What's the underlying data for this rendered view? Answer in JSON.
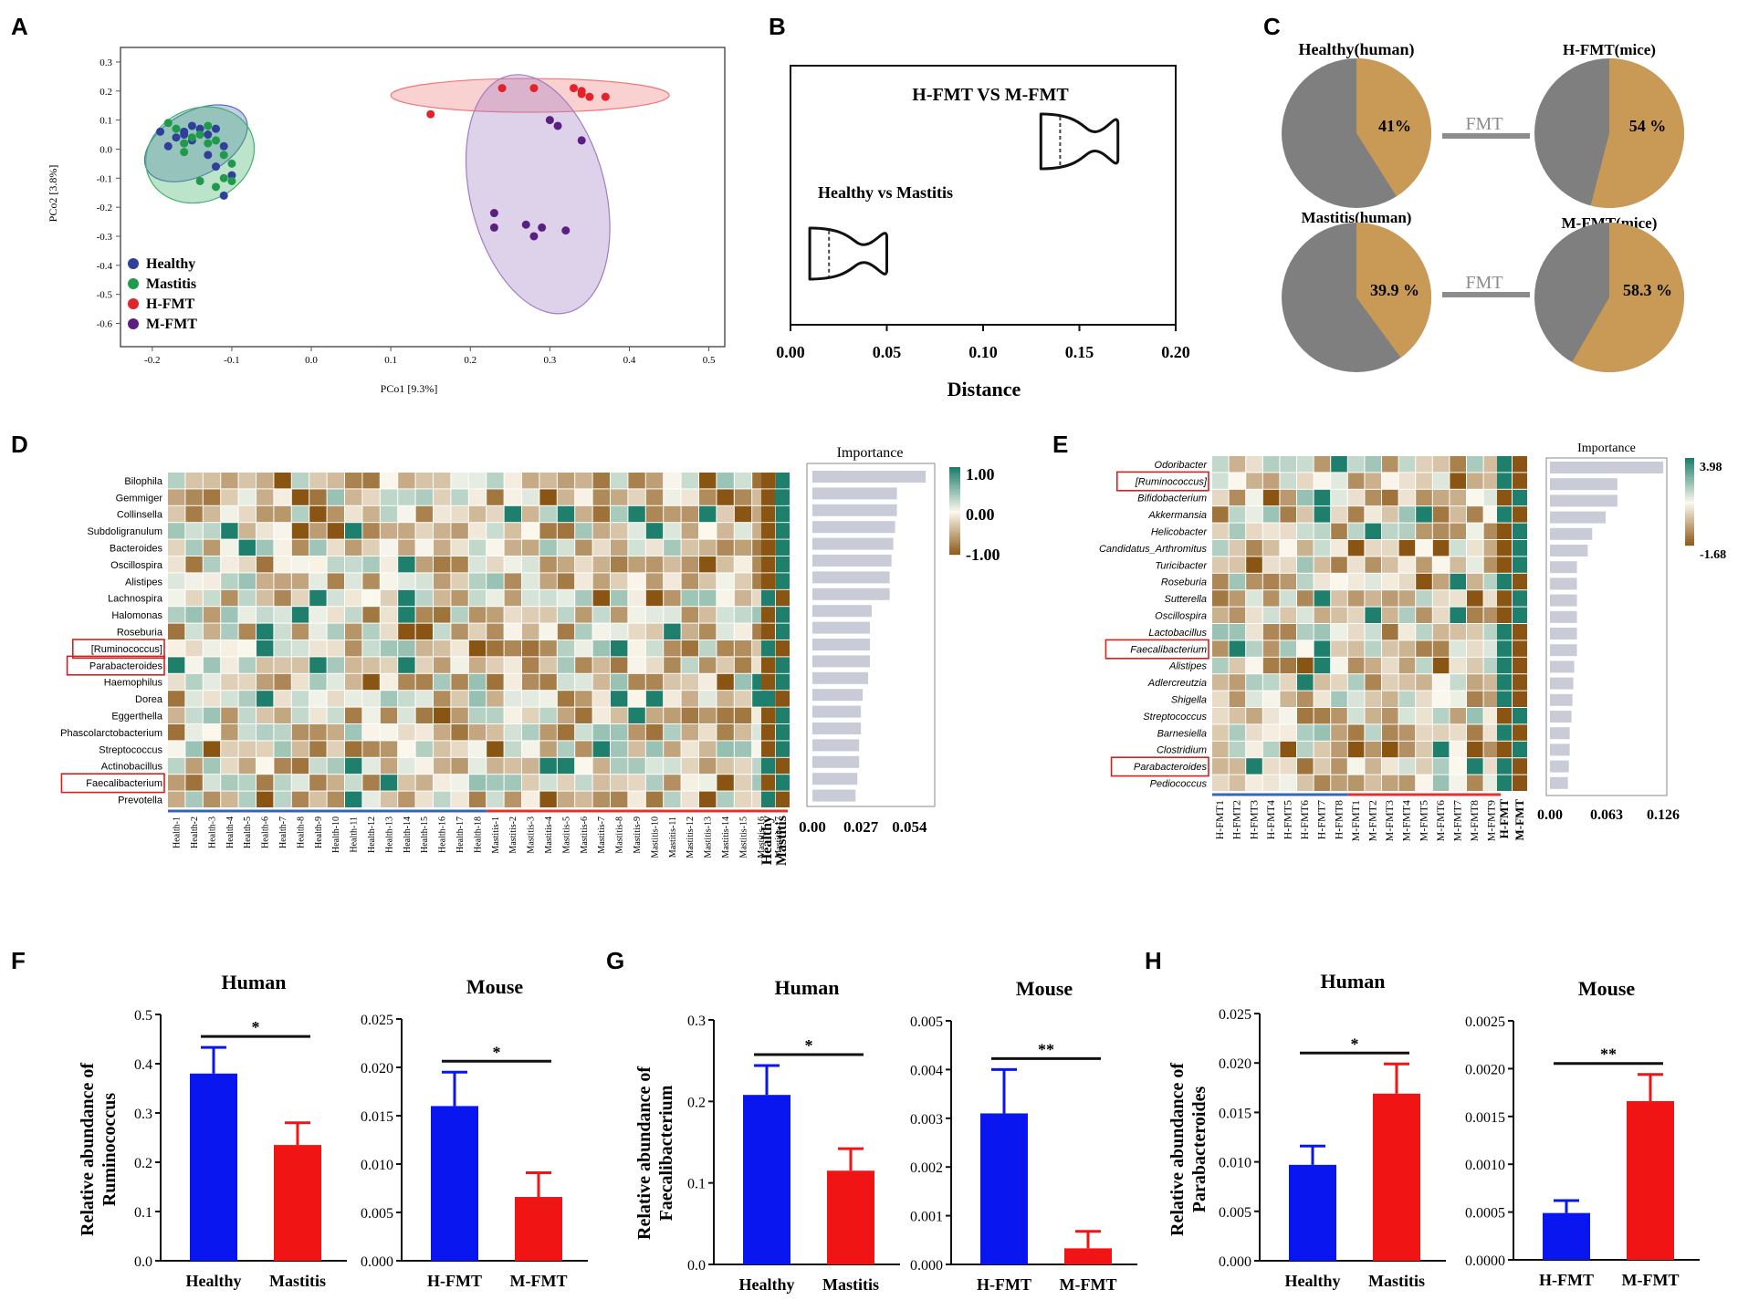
{
  "colors": {
    "healthy": "#2f3f9a",
    "mastitis": "#1f9a4a",
    "hfmt": "#e3222a",
    "mfmt": "#5b1f82",
    "blue": "#0a16f0",
    "red": "#f01414",
    "teal": "#1e7f6c",
    "brown": "#8a5512",
    "tan": "#c99a55",
    "gray": "#7f7f7f"
  },
  "panels": {
    "A": {
      "letter": "A",
      "xlabel": "PCo1 [9.3%]",
      "ylabel": "PCo2 [3.8%]",
      "xticks": [
        "-0.2",
        "-0.1",
        "0.0",
        "0.1",
        "0.2",
        "0.3",
        "0.4",
        "0.5"
      ],
      "yticks": [
        "0.3",
        "0.2",
        "0.1",
        "0.0",
        "-0.1",
        "-0.2",
        "-0.3",
        "-0.4",
        "-0.5",
        "-0.6"
      ],
      "legend": [
        "Healthy",
        "Mastitis",
        "H-FMT",
        "M-FMT"
      ]
    },
    "B": {
      "letter": "B",
      "xlabel": "Distance",
      "xticks": [
        "0.00",
        "0.05",
        "0.10",
        "0.15",
        "0.20"
      ],
      "labels": [
        "H-FMT VS M-FMT",
        "Healthy vs Mastitis"
      ]
    },
    "C": {
      "letter": "C",
      "titles": [
        "Healthy(human)",
        "H-FMT(mice)",
        "Mastitis(human)",
        "M-FMT(mice)"
      ],
      "percents": [
        "41%",
        "54 %",
        "39.9 %",
        "58.3 %"
      ],
      "arrow": "FMT"
    },
    "D": {
      "letter": "D",
      "taxa": [
        "Bilophila",
        "Gemmiger",
        "Collinsella",
        "Subdoligranulum",
        "Bacteroides",
        "Oscillospira",
        "Alistipes",
        "Lachnospira",
        "Halomonas",
        "Roseburia",
        "[Ruminococcus]",
        "Parabacteroides",
        "Haemophilus",
        "Dorea",
        "Eggerthella",
        "Phascolarctobacterium",
        "Streptococcus",
        "Actinobacillus",
        "Faecalibacterium",
        "Prevotella"
      ],
      "samples": [
        "Health-1",
        "Health-2",
        "Health-3",
        "Health-4",
        "Health-5",
        "Health-6",
        "Health-7",
        "Health-8",
        "Health-9",
        "Health-10",
        "Health-11",
        "Health-12",
        "Health-13",
        "Health-14",
        "Health-15",
        "Health-16",
        "Health-17",
        "Health-18",
        "Mastitis-1",
        "Mastitis-2",
        "Mastitis-3",
        "Mastitis-4",
        "Mastitis-5",
        "Mastitis-6",
        "Mastitis-7",
        "Mastitis-8",
        "Mastitis-9",
        "Mastitis-10",
        "Mastitis-11",
        "Mastitis-12",
        "Mastitis-13",
        "Mastitis-14",
        "Mastitis-15",
        "Mastitis-16",
        "Mastitis-17"
      ],
      "groups": [
        "Healthy",
        "Mastitis"
      ],
      "legend": [
        "1.00",
        "0.00",
        "-1.00"
      ],
      "importance_title": "Importance",
      "importance_ticks": [
        "0.00",
        "0.027",
        "0.054"
      ]
    },
    "E": {
      "letter": "E",
      "taxa": [
        "Odoribacter",
        "[Ruminococcus]",
        "Bifidobacterium",
        "Akkermansia",
        "Helicobacter",
        "Candidatus_Arthromitus",
        "Turicibacter",
        "Roseburia",
        "Sutterella",
        "Oscillospira",
        "Lactobacillus",
        "Faecalibacterium",
        "Alistipes",
        "Adlercreutzia",
        "Shigella",
        "Streptococcus",
        "Barnesiella",
        "Clostridium",
        "Parabacteroides",
        "Pediococcus"
      ],
      "samples": [
        "H-FMT1",
        "H-FMT2",
        "H-FMT3",
        "H-FMT4",
        "H-FMT5",
        "H-FMT6",
        "H-FMT7",
        "H-FMT8",
        "M-FMT1",
        "M-FMT2",
        "M-FMT3",
        "M-FMT4",
        "M-FMT5",
        "M-FMT6",
        "M-FMT7",
        "M-FMT8",
        "M-FMT9"
      ],
      "groups": [
        "H-FMT",
        "M-FMT"
      ],
      "legend": [
        "3.98",
        "-1.68"
      ],
      "importance_title": "Importance",
      "importance_ticks": [
        "0.00",
        "0.063",
        "0.126"
      ]
    },
    "F": {
      "letter": "F",
      "ylabel1": "Relative abundance of",
      "ylabel2": "Ruminococcus"
    },
    "G": {
      "letter": "G",
      "ylabel1": "Relative abundance of",
      "ylabel2": "Faecalibacterium"
    },
    "H": {
      "letter": "H",
      "ylabel1": "Relative abundance of",
      "ylabel2": "Parabacteroides"
    }
  },
  "chart_data": [
    {
      "id": "A",
      "type": "scatter",
      "title": "",
      "xlabel": "PCo1 [9.3%]",
      "ylabel": "PCo2 [3.8%]",
      "xlim": [
        -0.24,
        0.52
      ],
      "ylim": [
        -0.68,
        0.35
      ],
      "series": [
        {
          "name": "Healthy",
          "points": [
            [
              -0.19,
              0.06
            ],
            [
              -0.18,
              0.01
            ],
            [
              -0.17,
              0.04
            ],
            [
              -0.16,
              0.05
            ],
            [
              -0.15,
              0.08
            ],
            [
              -0.14,
              0.07
            ],
            [
              -0.13,
              0.05
            ],
            [
              -0.12,
              0.07
            ],
            [
              -0.11,
              0.01
            ],
            [
              -0.13,
              -0.02
            ],
            [
              -0.15,
              0.03
            ],
            [
              -0.12,
              -0.06
            ],
            [
              -0.1,
              -0.09
            ],
            [
              -0.11,
              -0.16
            ],
            [
              -0.16,
              0.06
            ]
          ]
        },
        {
          "name": "Mastitis",
          "points": [
            [
              -0.17,
              0.07
            ],
            [
              -0.16,
              0.02
            ],
            [
              -0.15,
              0.04
            ],
            [
              -0.14,
              0.05
            ],
            [
              -0.13,
              0.02
            ],
            [
              -0.12,
              0.03
            ],
            [
              -0.11,
              -0.02
            ],
            [
              -0.1,
              -0.05
            ],
            [
              -0.11,
              -0.1
            ],
            [
              -0.14,
              -0.11
            ],
            [
              -0.12,
              -0.13
            ],
            [
              -0.1,
              -0.11
            ],
            [
              -0.16,
              -0.01
            ],
            [
              -0.18,
              0.09
            ],
            [
              -0.13,
              0.08
            ]
          ]
        },
        {
          "name": "H-FMT",
          "points": [
            [
              0.15,
              0.12
            ],
            [
              0.24,
              0.21
            ],
            [
              0.28,
              0.21
            ],
            [
              0.33,
              0.21
            ],
            [
              0.34,
              0.2
            ],
            [
              0.35,
              0.18
            ],
            [
              0.34,
              0.19
            ],
            [
              0.37,
              0.18
            ]
          ]
        },
        {
          "name": "M-FMT",
          "points": [
            [
              0.3,
              0.1
            ],
            [
              0.31,
              0.08
            ],
            [
              0.34,
              0.03
            ],
            [
              0.23,
              -0.22
            ],
            [
              0.23,
              -0.27
            ],
            [
              0.27,
              -0.26
            ],
            [
              0.28,
              -0.3
            ],
            [
              0.29,
              -0.27
            ],
            [
              0.32,
              -0.28
            ]
          ]
        }
      ]
    },
    {
      "id": "B",
      "type": "violin",
      "xlabel": "Distance",
      "xlim": [
        0,
        0.2
      ],
      "series": [
        {
          "name": "H-FMT VS M-FMT",
          "median": 0.14,
          "range": [
            0.13,
            0.17
          ]
        },
        {
          "name": "Healthy vs Mastitis",
          "median": 0.02,
          "range": [
            0.01,
            0.05
          ]
        }
      ]
    },
    {
      "id": "C",
      "type": "pie",
      "series": [
        {
          "name": "Healthy(human)",
          "value": 41
        },
        {
          "name": "H-FMT(mice)",
          "value": 54
        },
        {
          "name": "Mastitis(human)",
          "value": 39.9
        },
        {
          "name": "M-FMT(mice)",
          "value": 58.3
        }
      ]
    },
    {
      "id": "D",
      "type": "bar",
      "title": "Importance",
      "categories": [
        "Bilophila",
        "Gemmiger",
        "Collinsella",
        "Subdoligranulum",
        "Bacteroides",
        "Oscillospira",
        "Alistipes",
        "Lachnospira",
        "Halomonas",
        "Roseburia",
        "[Ruminococcus]",
        "Parabacteroides",
        "Haemophilus",
        "Dorea",
        "Eggerthella",
        "Phascolarctobacterium",
        "Streptococcus",
        "Actinobacillus",
        "Faecalibacterium",
        "Prevotella"
      ],
      "values": [
        0.063,
        0.047,
        0.047,
        0.046,
        0.045,
        0.044,
        0.043,
        0.043,
        0.033,
        0.032,
        0.032,
        0.032,
        0.031,
        0.028,
        0.027,
        0.027,
        0.026,
        0.026,
        0.025,
        0.024
      ],
      "xlim": [
        0,
        0.065
      ]
    },
    {
      "id": "E",
      "type": "bar",
      "title": "Importance",
      "categories": [
        "Odoribacter",
        "[Ruminococcus]",
        "Bifidobacterium",
        "Akkermansia",
        "Helicobacter",
        "Candidatus_Arthromitus",
        "Turicibacter",
        "Roseburia",
        "Sutterella",
        "Oscillospira",
        "Lactobacillus",
        "Faecalibacterium",
        "Alistipes",
        "Adlercreutzia",
        "Shigella",
        "Streptococcus",
        "Barnesiella",
        "Clostridium",
        "Parabacteroides",
        "Pediococcus"
      ],
      "values": [
        0.126,
        0.075,
        0.075,
        0.062,
        0.047,
        0.042,
        0.03,
        0.03,
        0.03,
        0.03,
        0.03,
        0.03,
        0.027,
        0.026,
        0.025,
        0.024,
        0.022,
        0.022,
        0.021,
        0.02
      ],
      "xlim": [
        0,
        0.13
      ]
    },
    {
      "id": "F1",
      "type": "bar",
      "title": "Human",
      "categories": [
        "Healthy",
        "Mastitis"
      ],
      "values": [
        0.38,
        0.235
      ],
      "errors": [
        0.053,
        0.045
      ],
      "yticks": [
        "0.0",
        "0.1",
        "0.2",
        "0.3",
        "0.4",
        "0.5"
      ],
      "ylim": [
        0,
        0.5
      ],
      "sig": "*"
    },
    {
      "id": "F2",
      "type": "bar",
      "title": "Mouse",
      "categories": [
        "H-FMT",
        "M-FMT"
      ],
      "values": [
        0.016,
        0.0066
      ],
      "errors": [
        0.0035,
        0.0025
      ],
      "yticks": [
        "0.000",
        "0.005",
        "0.010",
        "0.015",
        "0.020",
        "0.025"
      ],
      "ylim": [
        0,
        0.025
      ],
      "sig": "*"
    },
    {
      "id": "G1",
      "type": "bar",
      "title": "Human",
      "categories": [
        "Healthy",
        "Mastitis"
      ],
      "values": [
        0.208,
        0.115
      ],
      "errors": [
        0.036,
        0.027
      ],
      "yticks": [
        "0.0",
        "0.1",
        "0.2",
        "0.3"
      ],
      "ylim": [
        0,
        0.3
      ],
      "sig": "*"
    },
    {
      "id": "G2",
      "type": "bar",
      "title": "Mouse",
      "categories": [
        "H-FMT",
        "M-FMT"
      ],
      "values": [
        0.0031,
        0.00033
      ],
      "errors": [
        0.0009,
        0.00035
      ],
      "yticks": [
        "0.000",
        "0.001",
        "0.002",
        "0.003",
        "0.004",
        "0.005"
      ],
      "ylim": [
        0,
        0.005
      ],
      "sig": "**"
    },
    {
      "id": "H1",
      "type": "bar",
      "title": "Human",
      "categories": [
        "Healthy",
        "Mastitis"
      ],
      "values": [
        0.0097,
        0.0169
      ],
      "errors": [
        0.0019,
        0.003
      ],
      "yticks": [
        "0.000",
        "0.005",
        "0.010",
        "0.015",
        "0.020",
        "0.025"
      ],
      "ylim": [
        0,
        0.025
      ],
      "sig": "*"
    },
    {
      "id": "H2",
      "type": "bar",
      "title": "Mouse",
      "categories": [
        "H-FMT",
        "M-FMT"
      ],
      "values": [
        0.00049,
        0.00166
      ],
      "errors": [
        0.00013,
        0.00028
      ],
      "yticks": [
        "0.0000",
        "0.0005",
        "0.0010",
        "0.0015",
        "0.0020",
        "0.0025"
      ],
      "ylim": [
        0,
        0.0025
      ],
      "sig": "**"
    }
  ]
}
